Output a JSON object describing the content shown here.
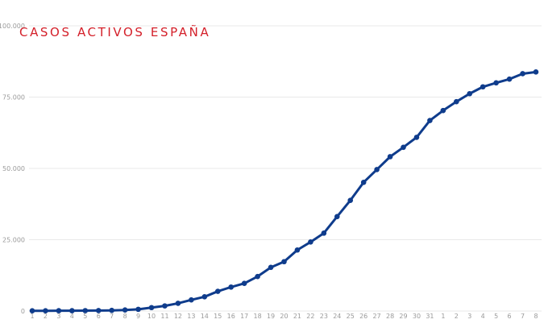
{
  "chart_data": {
    "type": "line",
    "title": "CASOS ACTIVOS ESPAÑA",
    "xlabel": "",
    "ylabel": "",
    "categories": [
      "1",
      "2",
      "3",
      "4",
      "5",
      "6",
      "7",
      "8",
      "9",
      "10",
      "11",
      "12",
      "13",
      "14",
      "15",
      "16",
      "17",
      "18",
      "19",
      "20",
      "21",
      "22",
      "23",
      "24",
      "25",
      "26",
      "27",
      "28",
      "29",
      "30",
      "31",
      "1",
      "2",
      "3",
      "4",
      "5",
      "6",
      "7",
      "8"
    ],
    "y_ticks": [
      0,
      25000,
      50000,
      75000,
      100000
    ],
    "y_tick_labels": [
      "0",
      "25.000",
      "50.000",
      "75.000",
      "100.000"
    ],
    "ylim": [
      0,
      100000
    ],
    "grid": true,
    "legend": "none",
    "series": [
      {
        "values": [
          84,
          80,
          110,
          110,
          140,
          170,
          230,
          360,
          600,
          1200,
          1800,
          2700,
          3900,
          5000,
          6900,
          8400,
          9700,
          12100,
          15300,
          17300,
          21400,
          24200,
          27300,
          33100,
          38800,
          45100,
          49600,
          54100,
          57400,
          60900,
          66800,
          70300,
          73400,
          76200,
          78600,
          80000,
          81300,
          83200,
          83800
        ]
      }
    ],
    "colors": {
      "line": "#0f3c8c",
      "title": "#d4202a",
      "grid": "#e9e9e9",
      "tick": "#9a9a9a"
    }
  }
}
